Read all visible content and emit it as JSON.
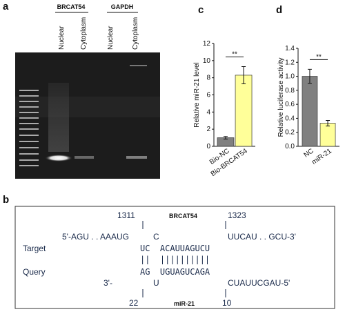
{
  "gel": {
    "panel": "a",
    "groups": [
      "BRCAT54",
      "GAPDH"
    ],
    "lanes": [
      "Nuclear",
      "Cytoplasm",
      "Nuclear",
      "Cytoplasm"
    ]
  },
  "diagram": {
    "panel": "b",
    "start": "1311",
    "gene": "BRCAT54",
    "end": "1323",
    "target_5": "5'-AGU . . AAAUG",
    "target_bulge": "C",
    "target_3": "UUCAU . . GCU-3'",
    "target_label": "Target",
    "target_pair": "UC  ACAUUAGUCU",
    "pairs": "||  ||||||||||",
    "query_label": "Query",
    "query_pair": "AG  UGUAGUCAGA",
    "query_3": "3'-",
    "query_bulge": "U",
    "query_5": "CUAUUCGAU-5'",
    "query_start": "22",
    "mirna": "miR-21",
    "query_end": "10"
  },
  "chart_data": [
    {
      "type": "bar",
      "panel": "c",
      "ylabel": "Relative miR-21 level",
      "annotation": "**",
      "categories": [
        "Bio-NC",
        "Bio-BRCAT54"
      ],
      "values": [
        1.0,
        8.3
      ],
      "errors": [
        0.15,
        1.0
      ],
      "colors": [
        "#808080",
        "#ffff99"
      ],
      "ylim": [
        0,
        12
      ],
      "yticks": [
        0,
        2,
        4,
        6,
        8,
        10,
        12
      ]
    },
    {
      "type": "bar",
      "panel": "d",
      "ylabel": "Relative luciferase activity",
      "annotation": "**",
      "categories": [
        "NC",
        "miR-21"
      ],
      "values": [
        1.0,
        0.33
      ],
      "errors": [
        0.1,
        0.04
      ],
      "colors": [
        "#808080",
        "#ffff99"
      ],
      "ylim": [
        0,
        1.4
      ],
      "yticks": [
        {
          "value": 0,
          "label": "0.0"
        },
        0.2,
        0.4,
        0.6,
        0.8,
        {
          "value": 1,
          "label": "1.0"
        },
        1.2,
        1.4
      ]
    }
  ]
}
